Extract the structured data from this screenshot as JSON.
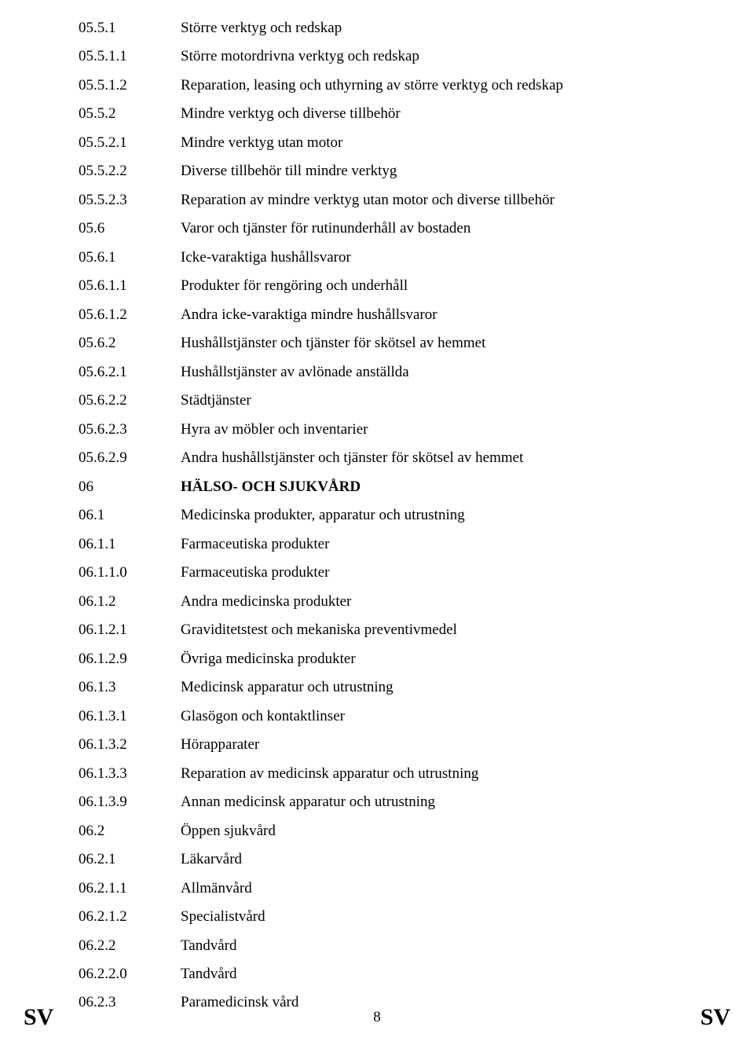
{
  "entries": [
    {
      "code": "05.5.1",
      "label": "Större verktyg och redskap",
      "bold": false
    },
    {
      "code": "05.5.1.1",
      "label": "Större motordrivna verktyg och redskap",
      "bold": false
    },
    {
      "code": "05.5.1.2",
      "label": "Reparation, leasing och uthyrning av större verktyg och redskap",
      "bold": false
    },
    {
      "code": "05.5.2",
      "label": "Mindre verktyg och diverse tillbehör",
      "bold": false
    },
    {
      "code": "05.5.2.1",
      "label": "Mindre verktyg utan motor",
      "bold": false
    },
    {
      "code": "05.5.2.2",
      "label": "Diverse tillbehör till mindre verktyg",
      "bold": false
    },
    {
      "code": "05.5.2.3",
      "label": "Reparation av mindre verktyg utan motor och diverse tillbehör",
      "bold": false
    },
    {
      "code": "05.6",
      "label": "Varor och tjänster för rutinunderhåll av bostaden",
      "bold": false
    },
    {
      "code": "05.6.1",
      "label": "Icke-varaktiga hushållsvaror",
      "bold": false
    },
    {
      "code": "05.6.1.1",
      "label": "Produkter för rengöring och underhåll",
      "bold": false
    },
    {
      "code": "05.6.1.2",
      "label": "Andra icke-varaktiga mindre hushållsvaror",
      "bold": false
    },
    {
      "code": "05.6.2",
      "label": "Hushållstjänster och tjänster för skötsel av hemmet",
      "bold": false
    },
    {
      "code": "05.6.2.1",
      "label": "Hushållstjänster av avlönade anställda",
      "bold": false
    },
    {
      "code": "05.6.2.2",
      "label": "Städtjänster",
      "bold": false
    },
    {
      "code": "05.6.2.3",
      "label": "Hyra av möbler och inventarier",
      "bold": false
    },
    {
      "code": "05.6.2.9",
      "label": "Andra hushållstjänster och tjänster för skötsel av hemmet",
      "bold": false
    },
    {
      "code": "06",
      "label": "HÄLSO- OCH SJUKVÅRD",
      "bold": true
    },
    {
      "code": "06.1",
      "label": "Medicinska produkter, apparatur och utrustning",
      "bold": false
    },
    {
      "code": "06.1.1",
      "label": "Farmaceutiska produkter",
      "bold": false
    },
    {
      "code": "06.1.1.0",
      "label": "Farmaceutiska produkter",
      "bold": false
    },
    {
      "code": "06.1.2",
      "label": "Andra medicinska produkter",
      "bold": false
    },
    {
      "code": "06.1.2.1",
      "label": "Graviditetstest och mekaniska preventivmedel",
      "bold": false
    },
    {
      "code": "06.1.2.9",
      "label": "Övriga medicinska produkter",
      "bold": false
    },
    {
      "code": "06.1.3",
      "label": "Medicinsk apparatur och utrustning",
      "bold": false
    },
    {
      "code": "06.1.3.1",
      "label": "Glasögon och kontaktlinser",
      "bold": false
    },
    {
      "code": "06.1.3.2",
      "label": "Hörapparater",
      "bold": false
    },
    {
      "code": "06.1.3.3",
      "label": "Reparation av medicinsk apparatur och utrustning",
      "bold": false
    },
    {
      "code": "06.1.3.9",
      "label": "Annan medicinsk apparatur och utrustning",
      "bold": false
    },
    {
      "code": "06.2",
      "label": "Öppen sjukvård",
      "bold": false
    },
    {
      "code": "06.2.1",
      "label": "Läkarvård",
      "bold": false
    },
    {
      "code": "06.2.1.1",
      "label": "Allmänvård",
      "bold": false
    },
    {
      "code": "06.2.1.2",
      "label": "Specialistvård",
      "bold": false
    },
    {
      "code": "06.2.2",
      "label": "Tandvård",
      "bold": false
    },
    {
      "code": "06.2.2.0",
      "label": "Tandvård",
      "bold": false
    },
    {
      "code": "06.2.3",
      "label": "Paramedicinsk vård",
      "bold": false
    }
  ],
  "footer": {
    "left": "SV",
    "page": "8",
    "right": "SV"
  }
}
